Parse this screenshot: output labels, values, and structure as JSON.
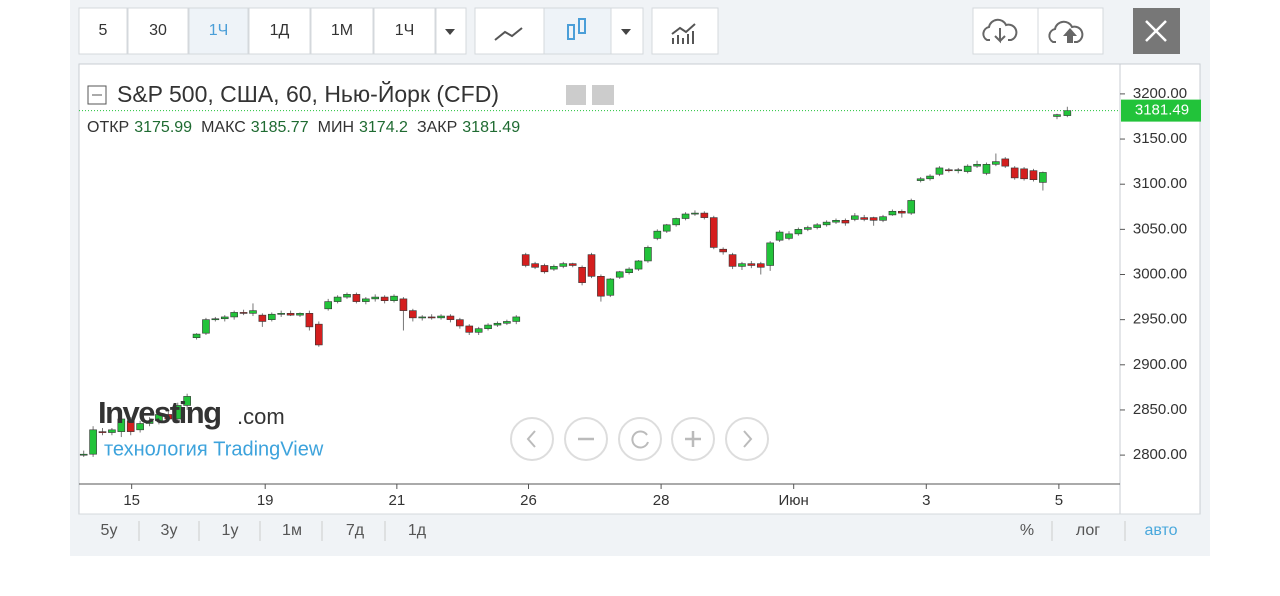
{
  "toolbar": {
    "intervals": [
      "5",
      "30",
      "1Ч",
      "1Д",
      "1М",
      "1Ч"
    ]
  },
  "ranges": [
    "5у",
    "3у",
    "1у",
    "1м",
    "7д",
    "1д"
  ],
  "scale_options": [
    "%",
    "лог",
    "авто"
  ],
  "branding": {
    "logo": "Investing",
    "logo_suffix": ".com",
    "powered": "технология TradingView"
  },
  "chart_data": {
    "type": "candlestick",
    "title": "S&P 500, США, 60, Нью-Йорк (CFD)",
    "ohlc_labels": [
      "ОТКР",
      "МАКС",
      "МИН",
      "ЗАКР"
    ],
    "up_color": "#22c33a",
    "down_color": "#d41e1e",
    "x": [
      0,
      1,
      2,
      3,
      4,
      5,
      6,
      7,
      8,
      9,
      10,
      11,
      12,
      13,
      14,
      15,
      16,
      17,
      18,
      19,
      20,
      21,
      22,
      23,
      24,
      25,
      26,
      27,
      28,
      29,
      30,
      31,
      32,
      33,
      34,
      35,
      36,
      37,
      38,
      39,
      40,
      41,
      42,
      43,
      44,
      45,
      46,
      47,
      48,
      49,
      50,
      51,
      52,
      53,
      54,
      55,
      56,
      57,
      58,
      59,
      60,
      61,
      62,
      63,
      64,
      65,
      66,
      67,
      68,
      69,
      70,
      71,
      72,
      73,
      74,
      75,
      76,
      77,
      78,
      79,
      80,
      81,
      82,
      83,
      84,
      85,
      86,
      87,
      88,
      89,
      90,
      91,
      92,
      93,
      94,
      95,
      96,
      97,
      98,
      99,
      100,
      101,
      102,
      103.5,
      104.6
    ],
    "ohlc": [
      [
        2800,
        2805,
        2798,
        2801
      ],
      [
        2801,
        2832,
        2798,
        2828
      ],
      [
        2826,
        2830,
        2822,
        2825
      ],
      [
        2825,
        2830,
        2822,
        2828
      ],
      [
        2826,
        2845,
        2820,
        2840
      ],
      [
        2838,
        2842,
        2822,
        2826
      ],
      [
        2828,
        2838,
        2825,
        2835
      ],
      [
        2835,
        2842,
        2832,
        2838
      ],
      [
        2838,
        2848,
        2834,
        2845
      ],
      [
        2845,
        2850,
        2838,
        2840
      ],
      [
        2840,
        2858,
        2838,
        2855
      ],
      [
        2855,
        2868,
        2850,
        2865
      ],
      [
        2930,
        2935,
        2928,
        2934
      ],
      [
        2935,
        2952,
        2933,
        2950
      ],
      [
        2950,
        2953,
        2948,
        2951
      ],
      [
        2951,
        2955,
        2948,
        2953
      ],
      [
        2953,
        2960,
        2950,
        2958
      ],
      [
        2958,
        2961,
        2955,
        2957
      ],
      [
        2957,
        2968,
        2954,
        2960
      ],
      [
        2955,
        2957,
        2942,
        2948
      ],
      [
        2950,
        2958,
        2948,
        2956
      ],
      [
        2956,
        2960,
        2953,
        2957
      ],
      [
        2957,
        2960,
        2954,
        2955
      ],
      [
        2955,
        2958,
        2953,
        2957
      ],
      [
        2957,
        2960,
        2938,
        2942
      ],
      [
        2945,
        2948,
        2920,
        2922
      ],
      [
        2962,
        2973,
        2960,
        2970
      ],
      [
        2970,
        2977,
        2968,
        2975
      ],
      [
        2975,
        2980,
        2973,
        2978
      ],
      [
        2978,
        2980,
        2968,
        2970
      ],
      [
        2970,
        2975,
        2967,
        2973
      ],
      [
        2973,
        2978,
        2970,
        2975
      ],
      [
        2975,
        2977,
        2968,
        2971
      ],
      [
        2971,
        2978,
        2969,
        2976
      ],
      [
        2973,
        2975,
        2938,
        2960
      ],
      [
        2960,
        2962,
        2948,
        2952
      ],
      [
        2952,
        2955,
        2949,
        2953
      ],
      [
        2953,
        2956,
        2950,
        2952
      ],
      [
        2952,
        2956,
        2950,
        2954
      ],
      [
        2954,
        2956,
        2947,
        2950
      ],
      [
        2950,
        2952,
        2940,
        2943
      ],
      [
        2943,
        2945,
        2933,
        2936
      ],
      [
        2936,
        2942,
        2933,
        2940
      ],
      [
        2940,
        2946,
        2938,
        2944
      ],
      [
        2944,
        2948,
        2942,
        2946
      ],
      [
        2946,
        2950,
        2944,
        2948
      ],
      [
        2948,
        2955,
        2945,
        2953
      ],
      [
        3022,
        3024,
        3008,
        3010
      ],
      [
        3012,
        3014,
        3006,
        3008
      ],
      [
        3010,
        3012,
        3001,
        3003
      ],
      [
        3006,
        3011,
        3004,
        3009
      ],
      [
        3009,
        3014,
        3007,
        3012
      ],
      [
        3012,
        3013,
        3008,
        3010
      ],
      [
        3008,
        3010,
        2988,
        2991
      ],
      [
        3022,
        3024,
        2996,
        2998
      ],
      [
        2998,
        3000,
        2970,
        2976
      ],
      [
        2977,
        2996,
        2975,
        2995
      ],
      [
        2997,
        3004,
        2995,
        3003
      ],
      [
        3002,
        3008,
        3000,
        3006
      ],
      [
        3006,
        3016,
        3004,
        3015
      ],
      [
        3015,
        3032,
        3013,
        3030
      ],
      [
        3040,
        3050,
        3038,
        3048
      ],
      [
        3048,
        3056,
        3046,
        3055
      ],
      [
        3055,
        3063,
        3053,
        3062
      ],
      [
        3062,
        3069,
        3060,
        3067
      ],
      [
        3067,
        3071,
        3065,
        3068
      ],
      [
        3068,
        3070,
        3061,
        3063
      ],
      [
        3063,
        3065,
        3028,
        3030
      ],
      [
        3028,
        3030,
        3022,
        3025
      ],
      [
        3022,
        3024,
        3006,
        3009
      ],
      [
        3009,
        3014,
        3005,
        3012
      ],
      [
        3012,
        3015,
        3007,
        3010
      ],
      [
        3012,
        3014,
        3000,
        3008
      ],
      [
        3010,
        3037,
        3004,
        3035
      ],
      [
        3038,
        3049,
        3036,
        3047
      ],
      [
        3040,
        3048,
        3038,
        3045
      ],
      [
        3045,
        3052,
        3043,
        3050
      ],
      [
        3050,
        3054,
        3048,
        3052
      ],
      [
        3052,
        3057,
        3050,
        3055
      ],
      [
        3055,
        3060,
        3053,
        3058
      ],
      [
        3058,
        3062,
        3056,
        3060
      ],
      [
        3060,
        3062,
        3054,
        3057
      ],
      [
        3061,
        3068,
        3059,
        3065
      ],
      [
        3063,
        3066,
        3059,
        3061
      ],
      [
        3063,
        3064,
        3054,
        3060
      ],
      [
        3060,
        3066,
        3058,
        3064
      ],
      [
        3066,
        3072,
        3065,
        3070
      ],
      [
        3070,
        3072,
        3063,
        3068
      ],
      [
        3068,
        3084,
        3066,
        3082
      ],
      [
        3104,
        3108,
        3102,
        3106
      ],
      [
        3106,
        3111,
        3104,
        3109
      ],
      [
        3111,
        3120,
        3109,
        3118
      ],
      [
        3116,
        3118,
        3113,
        3115
      ],
      [
        3115,
        3118,
        3112,
        3116
      ],
      [
        3114,
        3122,
        3112,
        3120
      ],
      [
        3120,
        3126,
        3118,
        3122
      ],
      [
        3112,
        3124,
        3110,
        3122
      ],
      [
        3122,
        3134,
        3120,
        3125
      ],
      [
        3128,
        3130,
        3118,
        3120
      ],
      [
        3118,
        3120,
        3105,
        3107
      ],
      [
        3117,
        3119,
        3104,
        3106
      ],
      [
        3115,
        3117,
        3103,
        3105
      ],
      [
        3102,
        3114,
        3093,
        3113
      ],
      [
        3175,
        3178,
        3172,
        3177
      ],
      [
        3175.99,
        3185.77,
        3174.2,
        3181.49
      ]
    ],
    "xlim": [
      -0.5,
      110.2
    ],
    "xticks": [
      {
        "value": 5.1,
        "label": "15"
      },
      {
        "value": 19.3,
        "label": "19"
      },
      {
        "value": 33.3,
        "label": "21"
      },
      {
        "value": 47.3,
        "label": "26"
      },
      {
        "value": 61.4,
        "label": "28"
      },
      {
        "value": 75.5,
        "label": "Июн"
      },
      {
        "value": 89.6,
        "label": "3"
      },
      {
        "value": 103.7,
        "label": "5"
      }
    ],
    "ylim": [
      2768,
      3232
    ],
    "yticks": [
      {
        "value": 2800,
        "label": "2800.00"
      },
      {
        "value": 2850,
        "label": "2850.00"
      },
      {
        "value": 2900,
        "label": "2900.00"
      },
      {
        "value": 2950,
        "label": "2950.00"
      },
      {
        "value": 3000,
        "label": "3000.00"
      },
      {
        "value": 3050,
        "label": "3050.00"
      },
      {
        "value": 3100,
        "label": "3100.00"
      },
      {
        "value": 3150,
        "label": "3150.00"
      },
      {
        "value": 3200,
        "label": "3200.00"
      }
    ]
  }
}
